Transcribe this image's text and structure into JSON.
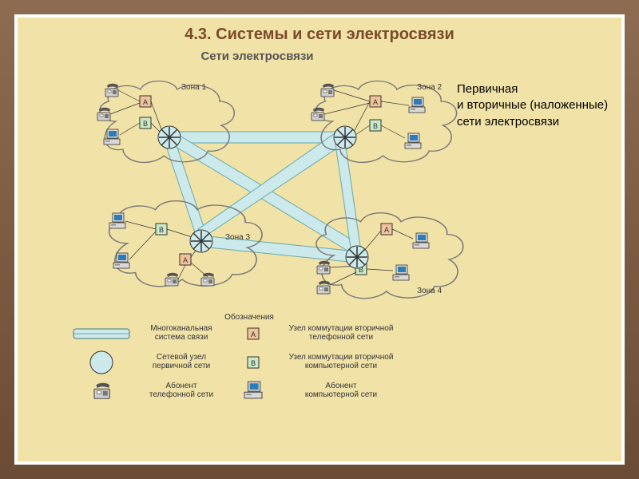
{
  "title": "4.3. Системы и сети электросвязи",
  "subtitle": "Сети электросвязи",
  "sidetext": "Первичная\nи вторичные (наложенные) сети электросвязи",
  "colors": {
    "bg": "#f1e2a8",
    "trunk_fill": "#cce9ec",
    "trunk_stroke": "#6aa",
    "cloud_stroke": "#777777",
    "boxA_fill": "#f2c39a",
    "boxB_fill": "#c8eac8",
    "border_dark": "#333333",
    "title_color": "#7a4b2a"
  },
  "zones": {
    "z1": {
      "label": "Зона 1"
    },
    "z2": {
      "label": "Зона 2"
    },
    "z3": {
      "label": "Зона 3"
    },
    "z4": {
      "label": "Зона 4"
    }
  },
  "boxes": {
    "a": "А",
    "b": "В"
  },
  "legend": {
    "title": "Обозначения",
    "items": [
      {
        "k": "trunk",
        "label": "Многоканальная\nсистема связи"
      },
      {
        "k": "node",
        "label": "Сетевой узел\nпервичной сети"
      },
      {
        "k": "phone",
        "label": "Абонент\nтелефонной сети"
      },
      {
        "k": "boxA",
        "label": "Узел коммутации вторичной\nтелефонной сети"
      },
      {
        "k": "boxB",
        "label": "Узел коммутации вторичной\nкомпьютерной  сети"
      },
      {
        "k": "comp",
        "label": "Абонент\nкомпьютерной сети"
      }
    ]
  }
}
